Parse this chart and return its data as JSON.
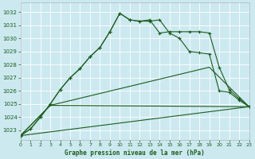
{
  "title": "Graphe pression niveau de la mer (hPa)",
  "background_color": "#cce9f0",
  "grid_color": "#aad4dc",
  "line_color": "#1a5c1a",
  "xlim": [
    0,
    23
  ],
  "ylim": [
    1022.3,
    1032.7
  ],
  "yticks": [
    1023,
    1024,
    1025,
    1026,
    1027,
    1028,
    1029,
    1030,
    1031,
    1032
  ],
  "xticks": [
    0,
    1,
    2,
    3,
    4,
    5,
    6,
    7,
    8,
    9,
    10,
    11,
    12,
    13,
    14,
    15,
    16,
    17,
    18,
    19,
    20,
    21,
    22,
    23
  ],
  "series1_y": [
    1022.6,
    1023.1,
    1024.0,
    1025.0,
    1026.1,
    1027.0,
    1027.7,
    1028.6,
    1029.3,
    1030.5,
    1031.9,
    1031.4,
    1031.3,
    1031.3,
    1031.4,
    1030.4,
    1030.0,
    1029.0,
    1028.9,
    1028.8,
    1026.0,
    1025.9,
    1025.3,
    1024.8
  ],
  "series2_y": [
    1022.6,
    1023.1,
    1024.0,
    1025.0,
    1026.1,
    1027.0,
    1027.7,
    1028.6,
    1029.3,
    1030.5,
    1031.9,
    1031.4,
    1031.3,
    1031.4,
    1030.4,
    1030.5,
    1030.5,
    1030.5,
    1030.5,
    1030.4,
    1027.8,
    1026.1,
    1025.4,
    1024.8
  ],
  "trend1_x": [
    0,
    3,
    19,
    23
  ],
  "trend1_y": [
    1022.6,
    1024.9,
    1027.8,
    1024.8
  ],
  "trend2_x": [
    0,
    3,
    23
  ],
  "trend2_y": [
    1022.6,
    1024.9,
    1024.8
  ],
  "trend3_x": [
    0,
    23
  ],
  "trend3_y": [
    1022.6,
    1024.8
  ]
}
